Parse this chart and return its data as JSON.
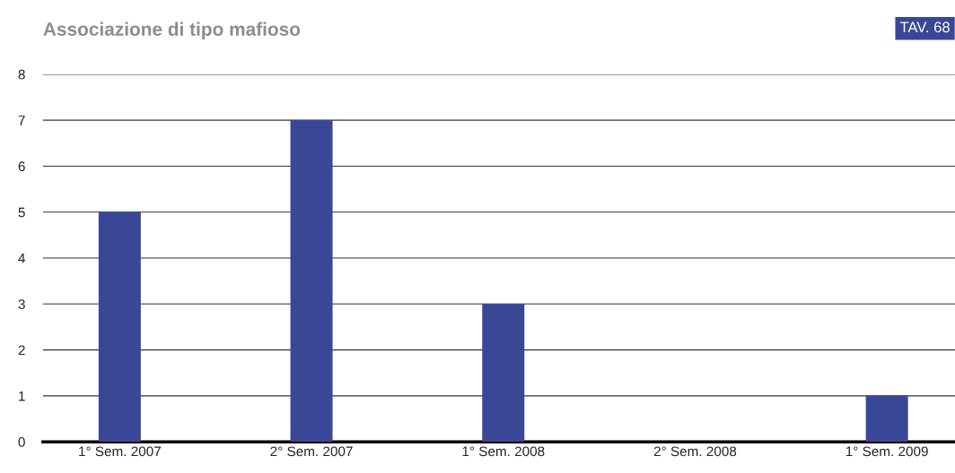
{
  "chart_data": {
    "type": "bar",
    "title": "Associazione di tipo mafioso",
    "annotations": [
      "TAV. 68"
    ],
    "categories": [
      "1° Sem. 2007",
      "2° Sem. 2007",
      "1° Sem. 2008",
      "2° Sem. 2008",
      "1° Sem. 2009"
    ],
    "values": [
      5,
      7,
      3,
      0,
      1
    ],
    "color": "#3a4796",
    "ylim": [
      0,
      8
    ],
    "yticks": [
      0,
      1,
      2,
      3,
      4,
      5,
      6,
      7,
      8
    ],
    "grid": "y",
    "legend": false
  }
}
